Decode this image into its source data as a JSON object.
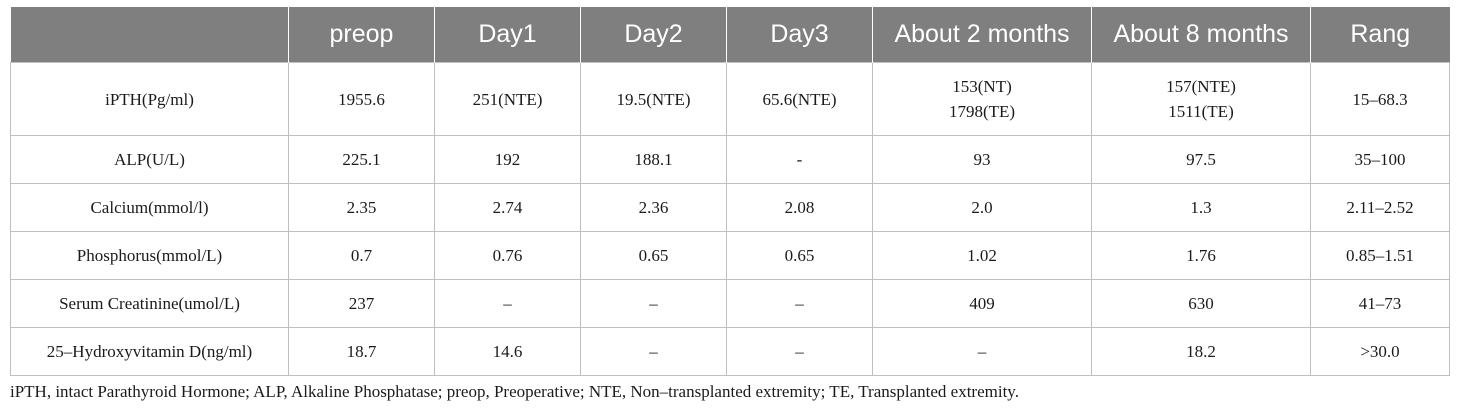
{
  "table": {
    "headers": [
      "",
      "preop",
      "Day1",
      "Day2",
      "Day3",
      "About 2 months",
      "About 8 months",
      "Rang"
    ],
    "rows": [
      [
        "iPTH(Pg/ml)",
        "1955.6",
        "251(NTE)",
        "19.5(NTE)",
        "65.6(NTE)",
        "153(NT)\n1798(TE)",
        "157(NTE)\n1511(TE)",
        "15–68.3"
      ],
      [
        "ALP(U/L)",
        "225.1",
        "192",
        "188.1",
        "-",
        "93",
        "97.5",
        "35–100"
      ],
      [
        "Calcium(mmol/l)",
        "2.35",
        "2.74",
        "2.36",
        "2.08",
        "2.0",
        "1.3",
        "2.11–2.52"
      ],
      [
        "Phosphorus(mmol/L)",
        "0.7",
        "0.76",
        "0.65",
        "0.65",
        "1.02",
        "1.76",
        "0.85–1.51"
      ],
      [
        "Serum Creatinine(umol/L)",
        "237",
        "–",
        "–",
        "–",
        "409",
        "630",
        "41–73"
      ],
      [
        "25–Hydroxyvitamin D(ng/ml)",
        "18.7",
        "14.6",
        "–",
        "–",
        "–",
        "18.2",
        ">30.0"
      ]
    ]
  },
  "footnote": "iPTH, intact Parathyroid Hormone; ALP, Alkaline Phosphatase; preop, Preoperative; NTE, Non–transplanted extremity; TE, Transplanted extremity."
}
